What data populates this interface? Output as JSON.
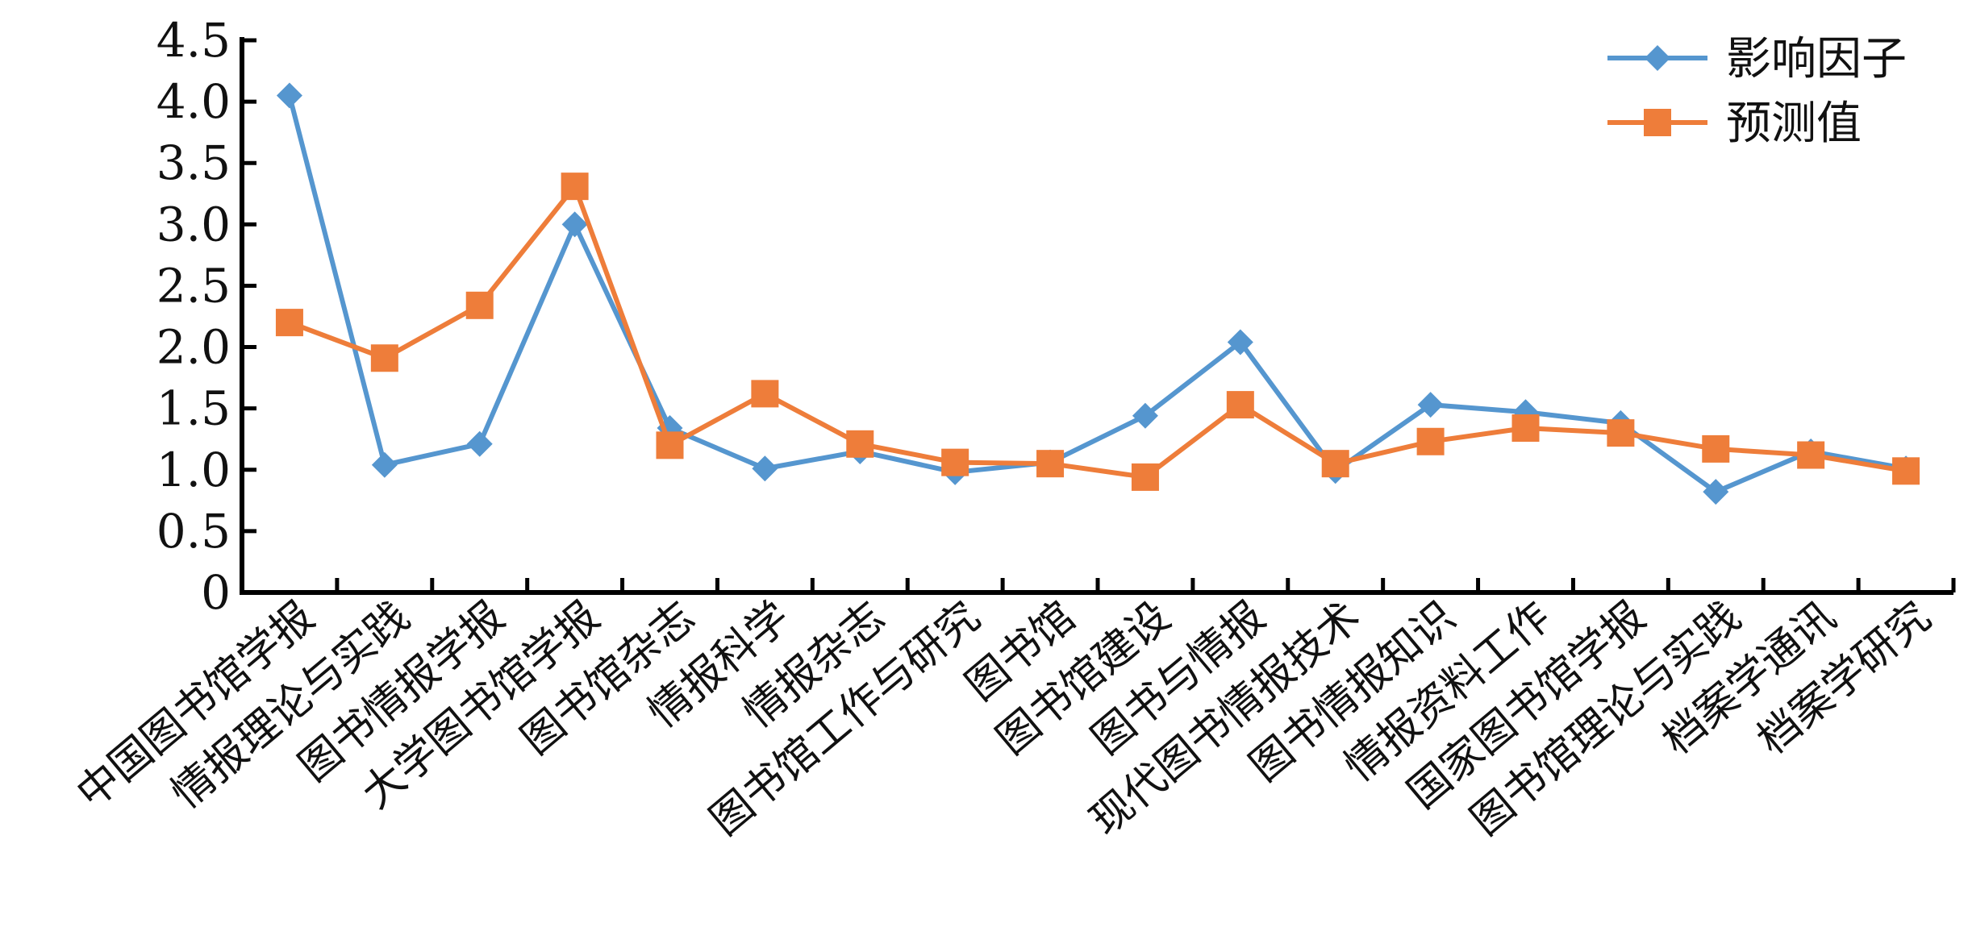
{
  "chart_data": {
    "type": "line",
    "title": "",
    "xlabel": "",
    "ylabel": "",
    "ylim": [
      0,
      4.5
    ],
    "yticks": [
      "0",
      "0.5",
      "1.0",
      "1.5",
      "2.0",
      "2.5",
      "3.0",
      "3.5",
      "4.0",
      "4.5"
    ],
    "grid": false,
    "legend_position": "top-right",
    "categories": [
      "中国图书馆学报",
      "情报理论与实践",
      "图书情报学报",
      "大学图书馆学报",
      "图书馆杂志",
      "情报科学",
      "情报杂志",
      "图书馆工作与研究",
      "图书馆",
      "图书馆建设",
      "图书与情报",
      "现代图书情报技术",
      "图书情报知识",
      "情报资料工作",
      "国家图书馆学报",
      "图书馆理论与实践",
      "档案学通讯",
      "档案学研究"
    ],
    "series": [
      {
        "name": "影响因子",
        "color": "#5596cf",
        "marker": "diamond",
        "values": [
          4.05,
          1.04,
          1.21,
          3.0,
          1.34,
          1.01,
          1.15,
          0.98,
          1.06,
          1.44,
          2.04,
          0.99,
          1.53,
          1.47,
          1.38,
          0.82,
          1.15,
          1.01
        ]
      },
      {
        "name": "预测值",
        "color": "#ee7d3a",
        "marker": "square",
        "values": [
          2.2,
          1.91,
          2.34,
          3.31,
          1.2,
          1.62,
          1.21,
          1.06,
          1.05,
          0.94,
          1.53,
          1.05,
          1.23,
          1.34,
          1.3,
          1.17,
          1.12,
          0.99
        ]
      }
    ]
  }
}
